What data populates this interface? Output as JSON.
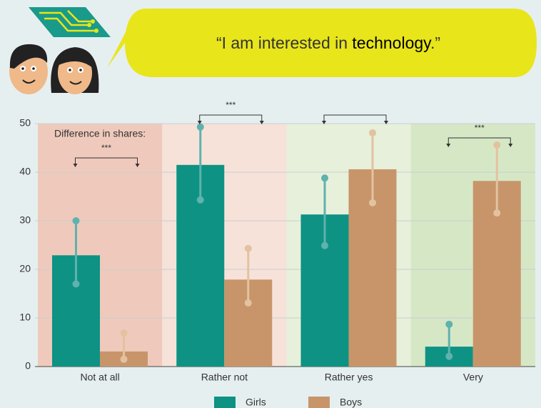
{
  "chart_data": {
    "type": "bar",
    "quote": {
      "before": "“I am interested in ",
      "emphasis": "technology",
      "after": ".”"
    },
    "annotation": "Difference in shares:",
    "categories": [
      "Not at all",
      "Rather not",
      "Rather yes",
      "Very"
    ],
    "significance": [
      "***",
      "***",
      null,
      "***"
    ],
    "series": [
      {
        "name": "Girls",
        "color": "#0e9284",
        "whisker_color": "#5fb2ad",
        "values": [
          22.9,
          41.5,
          31.3,
          4.1
        ],
        "ci_low": [
          17.0,
          34.3,
          24.9,
          2.1
        ],
        "ci_high": [
          30.0,
          49.3,
          38.8,
          8.7
        ]
      },
      {
        "name": "Boys",
        "color": "#c8956a",
        "whisker_color": "#e3c2a0",
        "values": [
          3.1,
          17.9,
          40.6,
          38.2
        ],
        "ci_low": [
          1.5,
          13.1,
          33.7,
          31.6
        ],
        "ci_high": [
          6.9,
          24.3,
          48.1,
          45.6
        ]
      }
    ],
    "band_colors": [
      "#efcabc",
      "#f6e2d9",
      "#e6f0da",
      "#d6e7c6"
    ],
    "ylim": [
      0,
      50
    ],
    "yticks": [
      0,
      10,
      20,
      30,
      40,
      50
    ],
    "grid": true
  }
}
